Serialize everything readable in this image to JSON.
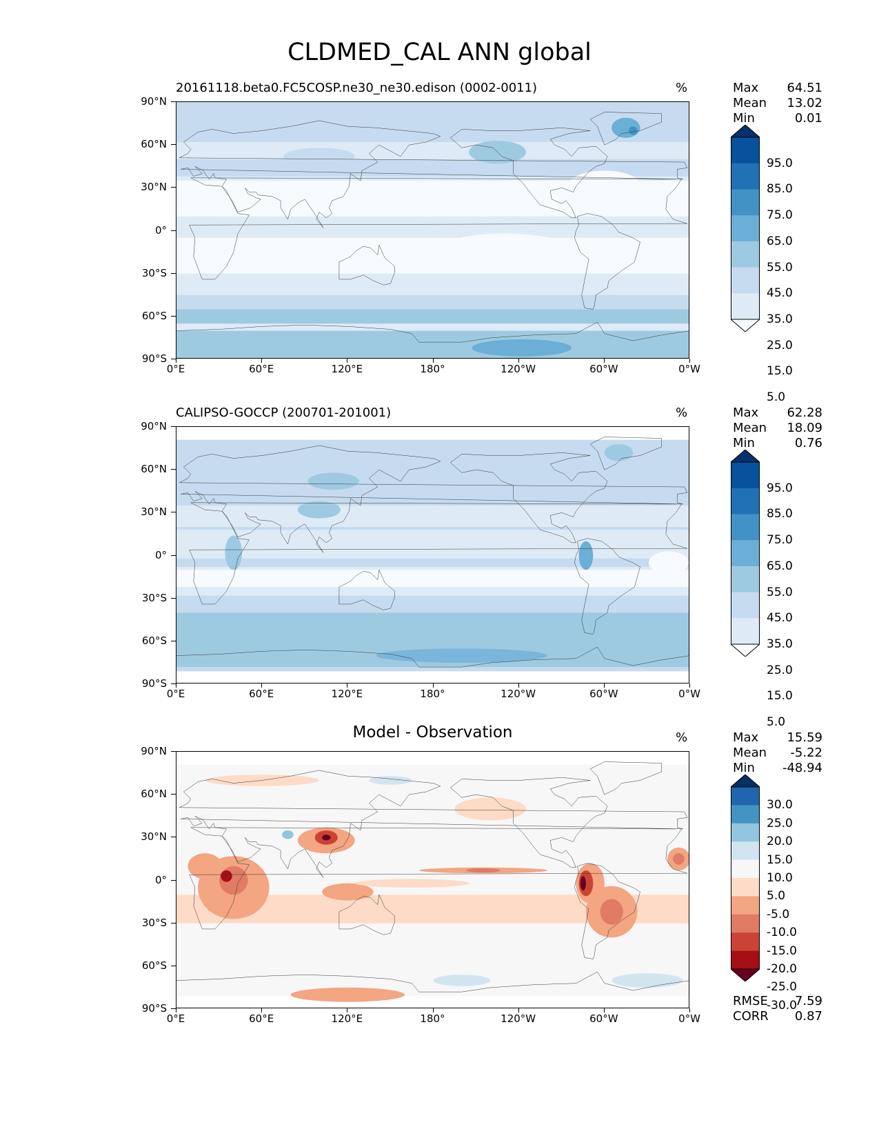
{
  "title": "CLDMED_CAL ANN global",
  "x_ticks": [
    "0°E",
    "60°E",
    "120°E",
    "180°",
    "120°W",
    "60°W",
    "0°W"
  ],
  "y_ticks": [
    "90°N",
    "60°N",
    "30°N",
    "0°",
    "30°S",
    "60°S",
    "90°S"
  ],
  "colors": {
    "blues": [
      "#f7fbff",
      "#deebf7",
      "#c6dbef",
      "#9ecae1",
      "#6baed6",
      "#4292c6",
      "#2171b5",
      "#08519c",
      "#08306b"
    ],
    "diverging": [
      "#67001f",
      "#a50f15",
      "#cb4335",
      "#e07b64",
      "#f4a582",
      "#fddbc7",
      "#f7f7f7",
      "#d1e5f0",
      "#92c5de",
      "#4393c3",
      "#2166ac",
      "#053061"
    ],
    "coast": "#333333"
  },
  "chart_data": [
    {
      "type": "heatmap",
      "id": "model",
      "title": "20161118.beta0.FC5COSP.ne30_ne30.edison (0002-0011)",
      "units": "%",
      "xlim": [
        0,
        360
      ],
      "ylim": [
        -90,
        90
      ],
      "stats": [
        {
          "label": "Max",
          "value": "64.51"
        },
        {
          "label": "Mean",
          "value": "13.02"
        },
        {
          "label": "Min",
          "value": "0.01"
        }
      ],
      "colorbar_levels": [
        "95.0",
        "85.0",
        "75.0",
        "65.0",
        "55.0",
        "45.0",
        "35.0",
        "25.0",
        "15.0",
        "5.0"
      ],
      "colormap": "blues"
    },
    {
      "type": "heatmap",
      "id": "obs",
      "title": "CALIPSO-GOCCP (200701-201001)",
      "units": "%",
      "xlim": [
        0,
        360
      ],
      "ylim": [
        -90,
        90
      ],
      "stats": [
        {
          "label": "Max",
          "value": "62.28"
        },
        {
          "label": "Mean",
          "value": "18.09"
        },
        {
          "label": "Min",
          "value": "0.76"
        }
      ],
      "colorbar_levels": [
        "95.0",
        "85.0",
        "75.0",
        "65.0",
        "55.0",
        "45.0",
        "35.0",
        "25.0",
        "15.0",
        "5.0"
      ],
      "colormap": "blues"
    },
    {
      "type": "heatmap",
      "id": "diff",
      "title": "Model - Observation",
      "units": "%",
      "xlim": [
        0,
        360
      ],
      "ylim": [
        -90,
        90
      ],
      "stats": [
        {
          "label": "Max",
          "value": "15.59"
        },
        {
          "label": "Mean",
          "value": "-5.22"
        },
        {
          "label": "Min",
          "value": "-48.94"
        }
      ],
      "colorbar_levels": [
        "30.0",
        "25.0",
        "20.0",
        "15.0",
        "10.0",
        "5.0",
        "-5.0",
        "-10.0",
        "-15.0",
        "-20.0",
        "-25.0",
        "-30.0"
      ],
      "colormap": "diverging",
      "extra_stats": [
        {
          "label": "RMSE",
          "value": "7.59"
        },
        {
          "label": "CORR",
          "value": "0.87"
        }
      ]
    }
  ]
}
